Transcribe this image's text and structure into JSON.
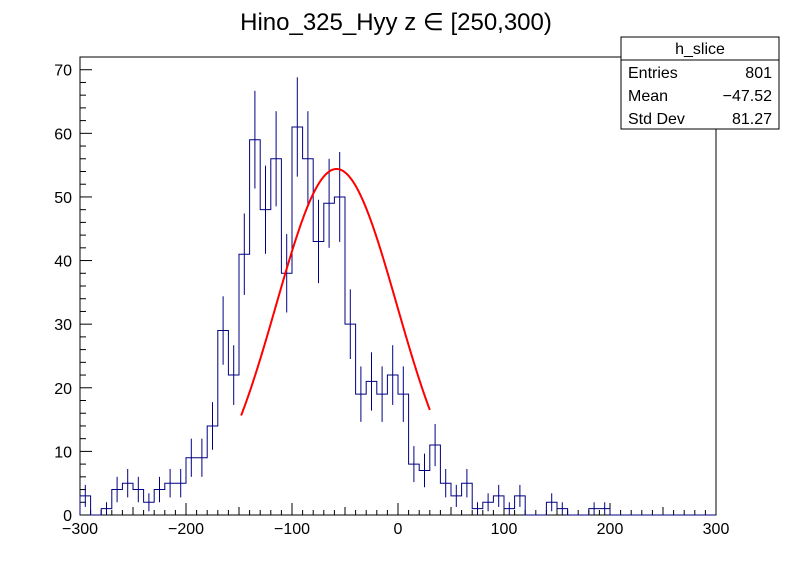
{
  "chart_data": {
    "type": "histogram",
    "title": "Hino_325_Hyy z  ∈ [250,300)",
    "xlabel": "",
    "ylabel": "",
    "xlim": [
      -300,
      300
    ],
    "ylim": [
      0,
      72
    ],
    "x_ticks": [
      "−300",
      "−200",
      "−100",
      "0",
      "100",
      "200",
      "300"
    ],
    "y_ticks": [
      "0",
      "10",
      "20",
      "30",
      "40",
      "50",
      "60",
      "70"
    ],
    "bin_width": 10,
    "bin_edges_start": -300,
    "counts": [
      3,
      0,
      1,
      4,
      5,
      4,
      2,
      4,
      5,
      5,
      9,
      9,
      14,
      29,
      22,
      41,
      59,
      48,
      56,
      38,
      61,
      56,
      43,
      49,
      50,
      30,
      19,
      21,
      19,
      22,
      19,
      8,
      7,
      11,
      5,
      3,
      5,
      1,
      2,
      3,
      1,
      3,
      0,
      0,
      2,
      1,
      0,
      0,
      1,
      1,
      0,
      0,
      0,
      0,
      0,
      0,
      0,
      0,
      0,
      0
    ],
    "series_color": "#000080",
    "fit": {
      "type": "gaussian",
      "color": "#ff0000",
      "amplitude": 54.4,
      "mean": -58,
      "sigma": 57,
      "range": [
        -148,
        30
      ]
    },
    "stats_box": {
      "name": "h_slice",
      "rows": [
        {
          "label": "Entries",
          "value": "801"
        },
        {
          "label": "Mean",
          "value": "−47.52"
        },
        {
          "label": "Std Dev",
          "value": "81.27"
        }
      ]
    },
    "grid": false
  }
}
